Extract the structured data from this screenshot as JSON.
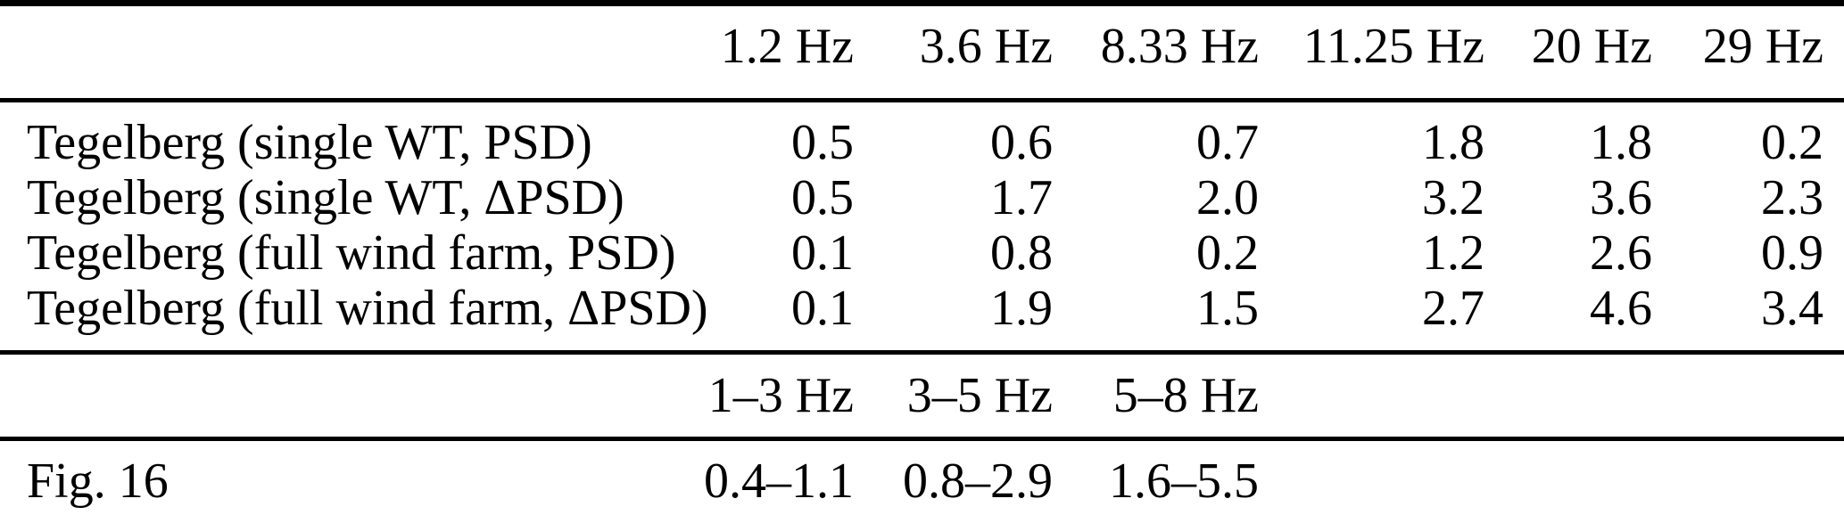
{
  "table": {
    "sections": [
      {
        "columns": [
          "1.2 Hz",
          "3.6 Hz",
          "8.33 Hz",
          "11.25 Hz",
          "20 Hz",
          "29 Hz"
        ],
        "rows": [
          {
            "label": "Tegelberg (single WT, PSD)",
            "values": [
              "0.5",
              "0.6",
              "0.7",
              "1.8",
              "1.8",
              "0.2"
            ]
          },
          {
            "label": "Tegelberg (single WT, ΔPSD)",
            "values": [
              "0.5",
              "1.7",
              "2.0",
              "3.2",
              "3.6",
              "2.3"
            ]
          },
          {
            "label": "Tegelberg (full wind farm, PSD)",
            "values": [
              "0.1",
              "0.8",
              "0.2",
              "1.2",
              "2.6",
              "0.9"
            ]
          },
          {
            "label": "Tegelberg (full wind farm, ΔPSD)",
            "values": [
              "0.1",
              "1.9",
              "1.5",
              "2.7",
              "4.6",
              "3.4"
            ]
          }
        ]
      },
      {
        "columns": [
          "1–3 Hz",
          "3–5 Hz",
          "5–8 Hz"
        ],
        "rows": [
          {
            "label": "Fig. 16",
            "values": [
              "0.4–1.1",
              "0.8–2.9",
              "1.6–5.5"
            ]
          }
        ]
      }
    ],
    "colors": {
      "text": "#000000",
      "background": "#ffffff",
      "rule": "#000000"
    }
  }
}
